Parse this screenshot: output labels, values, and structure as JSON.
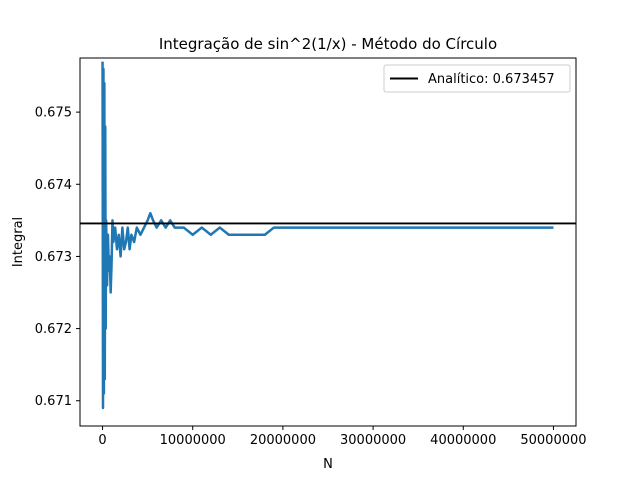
{
  "chart_data": {
    "type": "line",
    "title": "Integração de sin^2(1/x) - Método do Círculo",
    "xlabel": "N",
    "ylabel": "Integral",
    "xlim": [
      -2500000,
      52500000
    ],
    "ylim": [
      0.67065,
      0.67575
    ],
    "xticks": [
      0,
      10000000,
      20000000,
      30000000,
      40000000,
      50000000
    ],
    "xtick_labels": [
      "0",
      "10000000",
      "20000000",
      "30000000",
      "40000000",
      "50000000"
    ],
    "yticks": [
      0.671,
      0.672,
      0.673,
      0.674,
      0.675
    ],
    "ytick_labels": [
      "0.671",
      "0.672",
      "0.673",
      "0.674",
      "0.675"
    ],
    "grid": false,
    "legend_position": "upper-right",
    "reference_line": {
      "name": "Analítico: 0.673457",
      "value": 0.673457,
      "color": "#000000"
    },
    "series": [
      {
        "color": "#1f77b4",
        "x": [
          0,
          50000,
          100000,
          150000,
          200000,
          250000,
          300000,
          350000,
          400000,
          500000,
          600000,
          700000,
          800000,
          900000,
          1000000,
          1100000,
          1200000,
          1400000,
          1600000,
          1800000,
          2000000,
          2200000,
          2400000,
          2600000,
          2800000,
          3000000,
          3200000,
          3500000,
          3800000,
          4200000,
          4600000,
          5000000,
          5300000,
          5600000,
          6000000,
          6500000,
          7000000,
          7500000,
          8000000,
          9000000,
          10000000,
          11000000,
          12000000,
          13000000,
          14000000,
          15000000,
          16000000,
          17000000,
          18000000,
          19000000,
          20000000,
          22000000,
          24000000,
          26000000,
          28000000,
          30000000,
          32000000,
          34000000,
          36000000,
          38000000,
          40000000,
          42000000,
          44000000,
          46000000,
          48000000,
          50000000
        ],
        "y": [
          0.6757,
          0.6709,
          0.6756,
          0.6711,
          0.6754,
          0.6713,
          0.6748,
          0.672,
          0.6735,
          0.6726,
          0.6733,
          0.6728,
          0.673,
          0.6725,
          0.6729,
          0.6735,
          0.6732,
          0.6734,
          0.6731,
          0.6733,
          0.673,
          0.6734,
          0.6731,
          0.6732,
          0.6734,
          0.6731,
          0.6733,
          0.6732,
          0.6734,
          0.6733,
          0.6734,
          0.6735,
          0.6736,
          0.6735,
          0.6734,
          0.6735,
          0.6734,
          0.6735,
          0.6734,
          0.6734,
          0.6733,
          0.6734,
          0.6733,
          0.6734,
          0.6733,
          0.6733,
          0.6733,
          0.6733,
          0.6733,
          0.6734,
          0.6734,
          0.6734,
          0.6734,
          0.6734,
          0.6734,
          0.6734,
          0.6734,
          0.6734,
          0.6734,
          0.6734,
          0.6734,
          0.6734,
          0.6734,
          0.6734,
          0.6734,
          0.6734
        ]
      }
    ]
  }
}
